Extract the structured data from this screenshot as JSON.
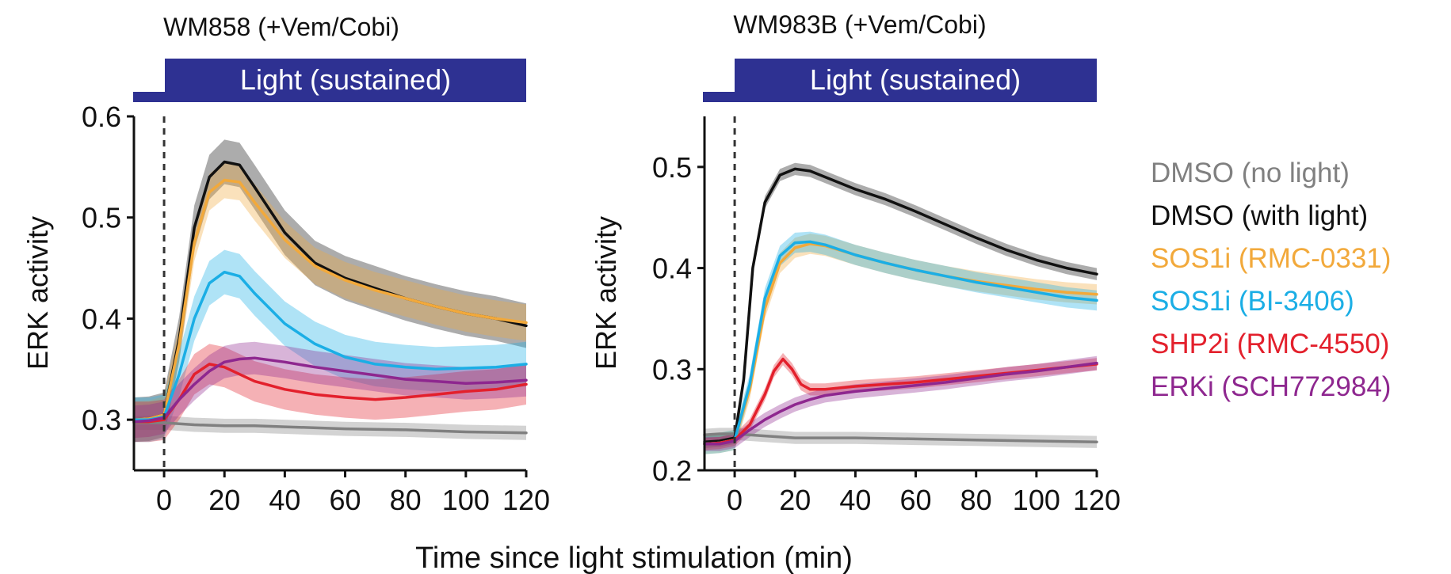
{
  "xlabel": "Time since light stimulation (min)",
  "legend": [
    {
      "label": "DMSO (no light)",
      "color": "#808080"
    },
    {
      "label": "DMSO (with light)",
      "color": "#111111"
    },
    {
      "label": "SOS1i (RMC-0331)",
      "color": "#F2A93B"
    },
    {
      "label": "SOS1i (BI-3406)",
      "color": "#1BAEE5"
    },
    {
      "label": "SHP2i (RMC-4550)",
      "color": "#E3202C"
    },
    {
      "label": "ERKi (SCH772984)",
      "color": "#8E278F"
    }
  ],
  "chart_data": [
    {
      "type": "line",
      "title": "WM858 (+Vem/Cobi)",
      "light_bar_label": "Light (sustained)",
      "xlabel": "Time since light stimulation (min)",
      "ylabel": "ERK activity",
      "xlim": [
        -10,
        120
      ],
      "ylim": [
        0.25,
        0.6
      ],
      "xticks": [
        0,
        20,
        40,
        60,
        80,
        100,
        120
      ],
      "yticks": [
        0.3,
        0.4,
        0.5,
        0.6
      ],
      "stim_time": 0,
      "series": [
        {
          "name": "DMSO (no light)",
          "color": "#808080",
          "band": 0.007,
          "x": [
            -10,
            -5,
            0,
            10,
            20,
            30,
            40,
            60,
            80,
            100,
            120
          ],
          "y": [
            0.297,
            0.297,
            0.297,
            0.295,
            0.294,
            0.294,
            0.293,
            0.291,
            0.29,
            0.288,
            0.287
          ]
        },
        {
          "name": "DMSO (with light)",
          "color": "#111111",
          "band": 0.022,
          "x": [
            -10,
            -5,
            0,
            5,
            10,
            15,
            20,
            25,
            30,
            40,
            50,
            60,
            70,
            80,
            90,
            100,
            110,
            120
          ],
          "y": [
            0.3,
            0.301,
            0.305,
            0.38,
            0.49,
            0.54,
            0.555,
            0.552,
            0.53,
            0.485,
            0.455,
            0.44,
            0.43,
            0.42,
            0.412,
            0.405,
            0.4,
            0.393
          ]
        },
        {
          "name": "SOS1i (RMC-0331)",
          "color": "#F2A93B",
          "band": 0.018,
          "x": [
            -10,
            -5,
            0,
            5,
            10,
            15,
            20,
            25,
            30,
            40,
            50,
            60,
            70,
            80,
            90,
            100,
            110,
            120
          ],
          "y": [
            0.3,
            0.301,
            0.305,
            0.375,
            0.475,
            0.525,
            0.537,
            0.535,
            0.515,
            0.478,
            0.452,
            0.438,
            0.428,
            0.42,
            0.412,
            0.405,
            0.4,
            0.396
          ]
        },
        {
          "name": "SOS1i (BI-3406)",
          "color": "#1BAEE5",
          "band": 0.022,
          "x": [
            -10,
            -5,
            0,
            5,
            10,
            15,
            20,
            25,
            30,
            40,
            50,
            60,
            70,
            80,
            90,
            100,
            110,
            120
          ],
          "y": [
            0.3,
            0.3,
            0.303,
            0.345,
            0.4,
            0.435,
            0.446,
            0.442,
            0.425,
            0.395,
            0.375,
            0.362,
            0.355,
            0.352,
            0.35,
            0.351,
            0.352,
            0.355
          ]
        },
        {
          "name": "SHP2i (RMC-4550)",
          "color": "#E3202C",
          "band": 0.02,
          "x": [
            -10,
            -5,
            0,
            5,
            10,
            15,
            20,
            25,
            30,
            40,
            50,
            60,
            70,
            80,
            90,
            100,
            110,
            120
          ],
          "y": [
            0.298,
            0.298,
            0.3,
            0.32,
            0.345,
            0.355,
            0.352,
            0.345,
            0.338,
            0.33,
            0.325,
            0.322,
            0.32,
            0.322,
            0.325,
            0.328,
            0.33,
            0.335
          ]
        },
        {
          "name": "ERKi (SCH772984)",
          "color": "#8E278F",
          "band": 0.016,
          "x": [
            -10,
            -5,
            0,
            5,
            10,
            15,
            20,
            25,
            30,
            40,
            50,
            60,
            70,
            80,
            90,
            100,
            110,
            120
          ],
          "y": [
            0.298,
            0.299,
            0.302,
            0.32,
            0.335,
            0.348,
            0.357,
            0.36,
            0.361,
            0.357,
            0.352,
            0.348,
            0.344,
            0.34,
            0.338,
            0.336,
            0.337,
            0.339
          ]
        }
      ]
    },
    {
      "type": "line",
      "title": "WM983B (+Vem/Cobi)",
      "light_bar_label": "Light (sustained)",
      "xlabel": "Time since light stimulation (min)",
      "ylabel": "ERK activity",
      "xlim": [
        -10,
        120
      ],
      "ylim": [
        0.2,
        0.55
      ],
      "xticks": [
        0,
        20,
        40,
        60,
        80,
        100,
        120
      ],
      "yticks": [
        0.2,
        0.3,
        0.4,
        0.5
      ],
      "stim_time": 0,
      "series": [
        {
          "name": "DMSO (no light)",
          "color": "#808080",
          "band": 0.006,
          "x": [
            -10,
            -5,
            0,
            10,
            20,
            30,
            40,
            60,
            80,
            100,
            120
          ],
          "y": [
            0.235,
            0.236,
            0.236,
            0.234,
            0.232,
            0.232,
            0.232,
            0.231,
            0.23,
            0.229,
            0.228
          ]
        },
        {
          "name": "DMSO (with light)",
          "color": "#111111",
          "band": 0.006,
          "x": [
            -10,
            -5,
            0,
            3,
            6,
            10,
            15,
            20,
            25,
            30,
            40,
            50,
            60,
            70,
            80,
            90,
            100,
            110,
            120
          ],
          "y": [
            0.228,
            0.229,
            0.232,
            0.29,
            0.4,
            0.465,
            0.492,
            0.498,
            0.496,
            0.49,
            0.478,
            0.468,
            0.456,
            0.443,
            0.43,
            0.418,
            0.408,
            0.4,
            0.394
          ]
        },
        {
          "name": "SOS1i (RMC-0331)",
          "color": "#F2A93B",
          "band": 0.01,
          "x": [
            -10,
            -5,
            0,
            5,
            10,
            15,
            20,
            25,
            30,
            40,
            50,
            60,
            70,
            80,
            90,
            100,
            110,
            120
          ],
          "y": [
            0.226,
            0.227,
            0.23,
            0.28,
            0.36,
            0.405,
            0.42,
            0.424,
            0.422,
            0.413,
            0.405,
            0.398,
            0.392,
            0.387,
            0.383,
            0.379,
            0.376,
            0.374
          ]
        },
        {
          "name": "SOS1i (BI-3406)",
          "color": "#1BAEE5",
          "band": 0.01,
          "x": [
            -10,
            -5,
            0,
            5,
            10,
            15,
            20,
            25,
            30,
            40,
            50,
            60,
            70,
            80,
            90,
            100,
            110,
            120
          ],
          "y": [
            0.226,
            0.227,
            0.23,
            0.285,
            0.37,
            0.412,
            0.425,
            0.426,
            0.423,
            0.413,
            0.405,
            0.398,
            0.392,
            0.386,
            0.381,
            0.376,
            0.371,
            0.368
          ]
        },
        {
          "name": "SHP2i (RMC-4550)",
          "color": "#E3202C",
          "band": 0.006,
          "x": [
            -10,
            -5,
            0,
            5,
            10,
            13,
            16,
            19,
            22,
            25,
            30,
            40,
            50,
            60,
            70,
            80,
            90,
            100,
            110,
            120
          ],
          "y": [
            0.226,
            0.227,
            0.23,
            0.245,
            0.275,
            0.298,
            0.31,
            0.3,
            0.285,
            0.28,
            0.28,
            0.283,
            0.285,
            0.287,
            0.29,
            0.293,
            0.296,
            0.299,
            0.302,
            0.305
          ]
        },
        {
          "name": "ERKi (SCH772984)",
          "color": "#8E278F",
          "band": 0.007,
          "x": [
            -10,
            -5,
            0,
            5,
            10,
            15,
            20,
            25,
            30,
            40,
            50,
            60,
            70,
            80,
            90,
            100,
            110,
            120
          ],
          "y": [
            0.226,
            0.226,
            0.229,
            0.24,
            0.25,
            0.258,
            0.265,
            0.27,
            0.274,
            0.278,
            0.281,
            0.284,
            0.287,
            0.291,
            0.295,
            0.298,
            0.302,
            0.306
          ]
        }
      ]
    }
  ]
}
